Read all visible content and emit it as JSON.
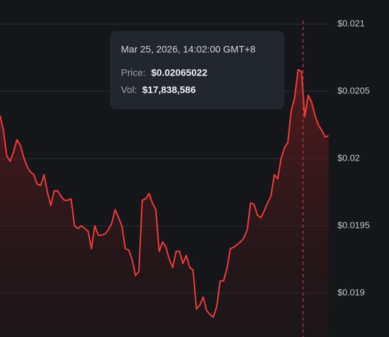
{
  "chart_data": {
    "type": "area-line",
    "values": [
      0.02032,
      0.02021,
      0.02002,
      0.01998,
      0.02005,
      0.02014,
      0.0201,
      0.02001,
      0.01994,
      0.0199,
      0.01988,
      0.01981,
      0.0198,
      0.01988,
      0.01975,
      0.01965,
      0.01976,
      0.01976,
      0.01972,
      0.01969,
      0.01969,
      0.0197,
      0.0195,
      0.01948,
      0.0195,
      0.01948,
      0.01946,
      0.01933,
      0.0195,
      0.01943,
      0.01943,
      0.01944,
      0.01947,
      0.01952,
      0.01962,
      0.01956,
      0.0195,
      0.01933,
      0.01932,
      0.01925,
      0.01913,
      0.01916,
      0.01969,
      0.0197,
      0.01974,
      0.01967,
      0.01962,
      0.01931,
      0.01938,
      0.01934,
      0.01925,
      0.01919,
      0.01931,
      0.01931,
      0.01922,
      0.01928,
      0.01919,
      0.01917,
      0.01888,
      0.01891,
      0.01897,
      0.01887,
      0.01884,
      0.01882,
      0.0189,
      0.01909,
      0.01909,
      0.01918,
      0.01933,
      0.01934,
      0.01936,
      0.01938,
      0.01941,
      0.01947,
      0.01967,
      0.01966,
      0.01958,
      0.01956,
      0.01961,
      0.01967,
      0.01972,
      0.01988,
      0.01985,
      0.02,
      0.02008,
      0.02012,
      0.02036,
      0.02045,
      0.02066,
      0.02065,
      0.02031,
      0.02047,
      0.02042,
      0.02032,
      0.02025,
      0.02021,
      0.02016,
      0.02017
    ],
    "color": "#f23c3c",
    "ylim": [
      0.018673,
      0.021179
    ],
    "yticks": [
      {
        "value": 0.021,
        "label": "$0.021"
      },
      {
        "value": 0.0205,
        "label": "$0.0205"
      },
      {
        "value": 0.02,
        "label": "$0.02"
      },
      {
        "value": 0.0195,
        "label": "$0.0195"
      },
      {
        "value": 0.019,
        "label": "$0.019"
      }
    ],
    "grid": true,
    "tooltip": {
      "time": "Mar 25, 2026, 14:02:00 GMT+8",
      "price_label": "Price:",
      "price": "$0.02065022",
      "volume_label": "Vol:",
      "volume": "$17,838,586"
    }
  }
}
